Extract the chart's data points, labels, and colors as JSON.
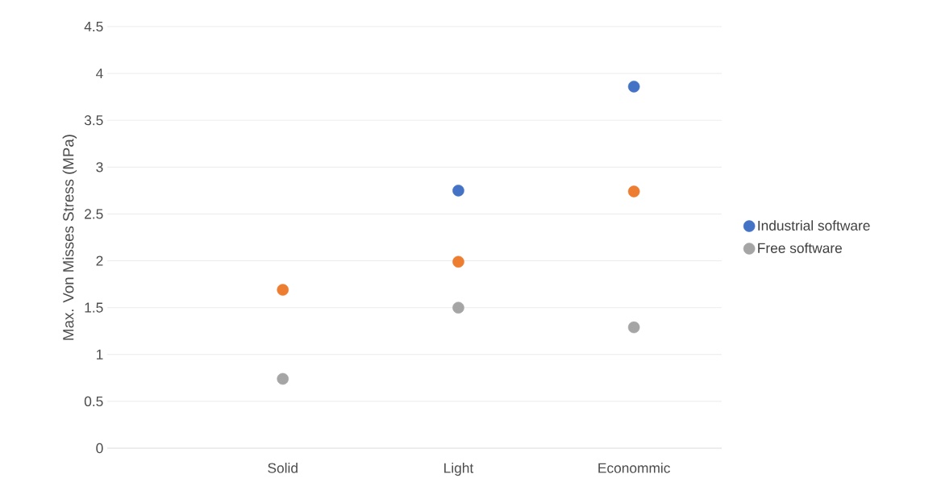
{
  "chart_data": {
    "type": "scatter",
    "ylabel": "Max. Von Misses Stress (MPa)",
    "categories": [
      "Solid",
      "Light",
      "Econommic"
    ],
    "series": [
      {
        "name": "Industrial software",
        "color": "#4472c4",
        "values": [
          null,
          2.75,
          3.86
        ]
      },
      {
        "color": "#ed7d31",
        "values": [
          1.69,
          1.99,
          2.74
        ]
      },
      {
        "name": "Free software",
        "color": "#a5a5a5",
        "values": [
          0.74,
          1.5,
          1.29
        ]
      }
    ],
    "ylim": [
      0,
      4.5
    ],
    "yticks": [
      0,
      0.5,
      1,
      1.5,
      2,
      2.5,
      3,
      3.5,
      4,
      4.5
    ],
    "grid": "y",
    "legend": "right"
  }
}
